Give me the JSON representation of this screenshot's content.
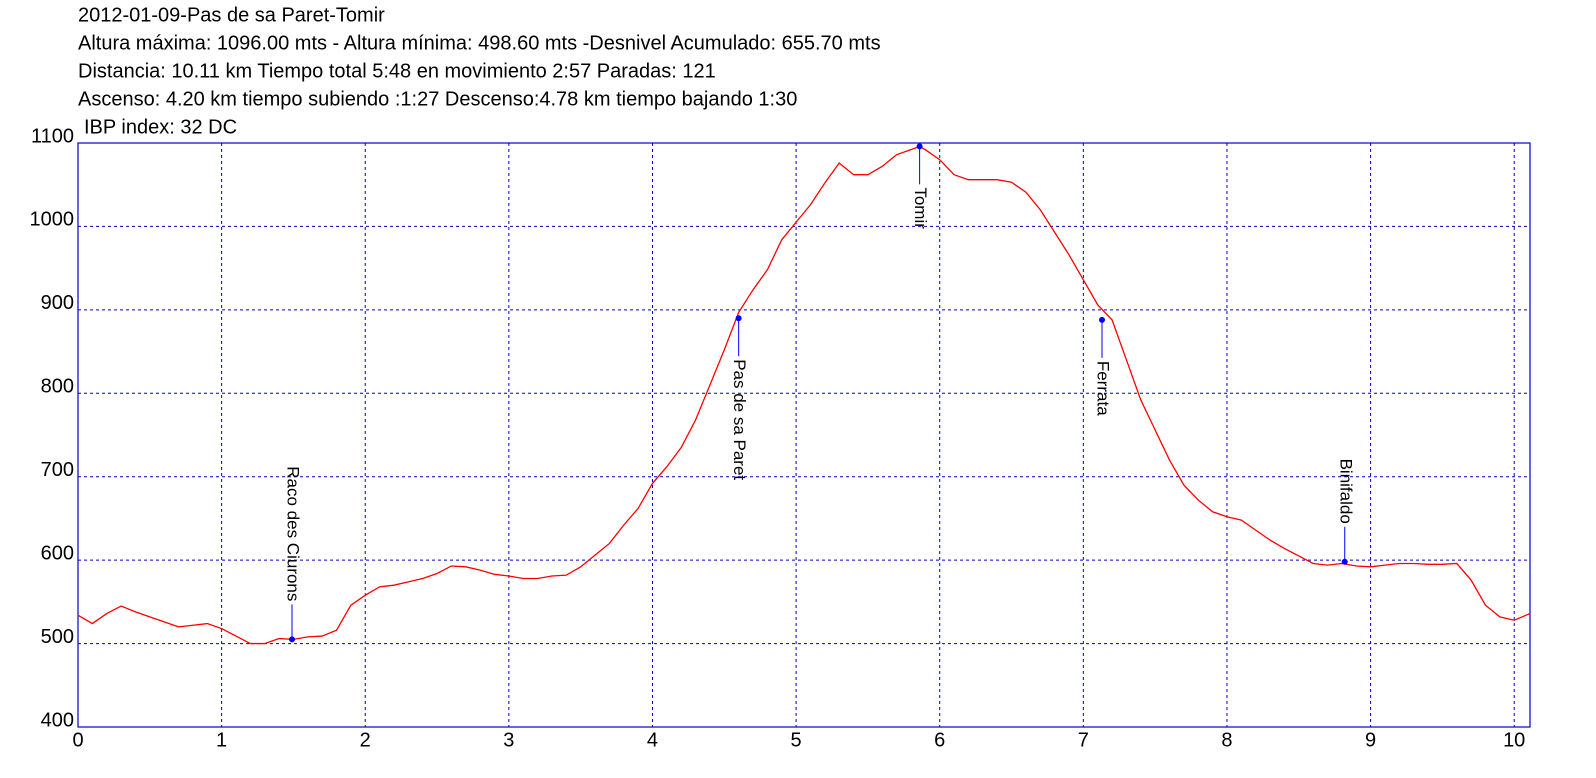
{
  "chart_data": {
    "type": "line",
    "title": "2012-01-09-Pas de sa Paret-Tomir",
    "info_lines": [
      "Altura máxima: 1096.00 mts - Altura mínima: 498.60 mts -Desnivel Acumulado: 655.70 mts",
      "Distancia: 10.11 km  Tiempo total 5:48  en movimiento 2:57 Paradas: 121",
      "Ascenso: 4.20 km  tiempo subiendo :1:27  Descenso:4.78 km tiempo bajando 1:30",
      "IBP index: 32 DC"
    ],
    "color": "#ff0000",
    "x": [
      0,
      0.1,
      0.2,
      0.3,
      0.4,
      0.5,
      0.6,
      0.7,
      0.8,
      0.9,
      1.0,
      1.1,
      1.2,
      1.3,
      1.4,
      1.5,
      1.6,
      1.7,
      1.8,
      1.9,
      2.0,
      2.1,
      2.2,
      2.3,
      2.4,
      2.5,
      2.6,
      2.7,
      2.8,
      2.9,
      3.0,
      3.1,
      3.2,
      3.3,
      3.4,
      3.5,
      3.6,
      3.7,
      3.8,
      3.9,
      4.0,
      4.1,
      4.2,
      4.3,
      4.4,
      4.5,
      4.6,
      4.7,
      4.8,
      4.9,
      5.0,
      5.1,
      5.2,
      5.3,
      5.4,
      5.5,
      5.6,
      5.7,
      5.8,
      5.86,
      5.9,
      6.0,
      6.1,
      6.2,
      6.3,
      6.4,
      6.5,
      6.6,
      6.7,
      6.8,
      6.9,
      7.0,
      7.1,
      7.2,
      7.3,
      7.4,
      7.5,
      7.6,
      7.7,
      7.8,
      7.9,
      8.0,
      8.1,
      8.2,
      8.3,
      8.4,
      8.5,
      8.6,
      8.7,
      8.8,
      8.9,
      9.0,
      9.1,
      9.2,
      9.3,
      9.4,
      9.5,
      9.6,
      9.7,
      9.8,
      9.9,
      10.0,
      10.11
    ],
    "values": [
      534,
      524,
      536,
      545,
      538,
      532,
      526,
      520,
      522,
      524,
      518,
      509,
      500,
      500,
      506,
      505,
      508,
      509,
      516,
      546,
      558,
      568,
      570,
      574,
      578,
      584,
      593,
      592,
      588,
      583,
      581,
      578,
      578,
      581,
      582,
      592,
      606,
      620,
      642,
      662,
      692,
      712,
      735,
      768,
      810,
      852,
      897,
      924,
      948,
      984,
      1005,
      1026,
      1052,
      1076,
      1062,
      1062,
      1072,
      1086,
      1092,
      1096,
      1092,
      1080,
      1062,
      1056,
      1056,
      1056,
      1053,
      1041,
      1020,
      993,
      966,
      936,
      906,
      888,
      840,
      792,
      756,
      720,
      690,
      672,
      658,
      652,
      648,
      636,
      624,
      614,
      605,
      596,
      594,
      596,
      593,
      592,
      594,
      596,
      596,
      595,
      595,
      596,
      576,
      546,
      532,
      528,
      536
    ],
    "waypoints": [
      {
        "name": "Raco des Ciurons",
        "x": 1.49,
        "y": 505
      },
      {
        "name": "Pas de sa Paret",
        "x": 4.6,
        "y": 890
      },
      {
        "name": "Tomir",
        "x": 5.86,
        "y": 1096
      },
      {
        "name": "Ferrata",
        "x": 7.13,
        "y": 888
      },
      {
        "name": "Binifaldo",
        "x": 8.82,
        "y": 598
      }
    ],
    "waypoint_color": "#0000ff",
    "xlim": [
      0,
      10.11
    ],
    "xticks": [
      0,
      1,
      2,
      3,
      4,
      5,
      6,
      7,
      8,
      9,
      10
    ],
    "ylim": [
      400,
      1100
    ],
    "yticks": [
      400,
      500,
      600,
      700,
      800,
      900,
      1000,
      1100
    ],
    "grid": true
  }
}
